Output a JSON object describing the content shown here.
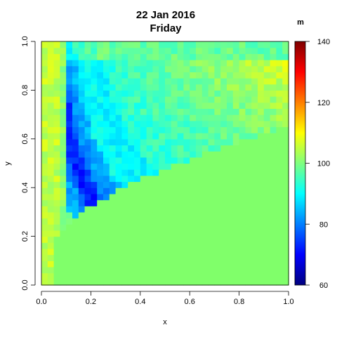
{
  "chart_data": {
    "type": "heatmap",
    "title": "22 Jan 2016",
    "subtitle": "Friday",
    "xlabel": "x",
    "ylabel": "y",
    "xlim": [
      0,
      1
    ],
    "ylim": [
      0,
      1
    ],
    "x_ticks": [
      "0.0",
      "0.2",
      "0.4",
      "0.6",
      "0.8",
      "1.0"
    ],
    "y_ticks": [
      "0.0",
      "0.2",
      "0.4",
      "0.6",
      "0.8",
      "1.0"
    ],
    "grid": false,
    "grid_cells": [
      40,
      40
    ],
    "colorbar": {
      "unit_label": "m",
      "range": [
        60,
        140
      ],
      "ticks": [
        "60",
        "80",
        "100",
        "120",
        "140"
      ],
      "colormap": [
        "#00007f",
        "#0000ff",
        "#007fff",
        "#00ffff",
        "#7fff7f",
        "#ffff00",
        "#ff7f00",
        "#ff0000",
        "#7f0000"
      ]
    },
    "regions": [
      {
        "name": "lower-right plateau",
        "value": 100,
        "color": "#80ff6a"
      },
      {
        "name": "left edge band",
        "value": 105
      },
      {
        "name": "outer trough band",
        "value": 78
      },
      {
        "name": "inner band",
        "value": 90
      }
    ]
  }
}
